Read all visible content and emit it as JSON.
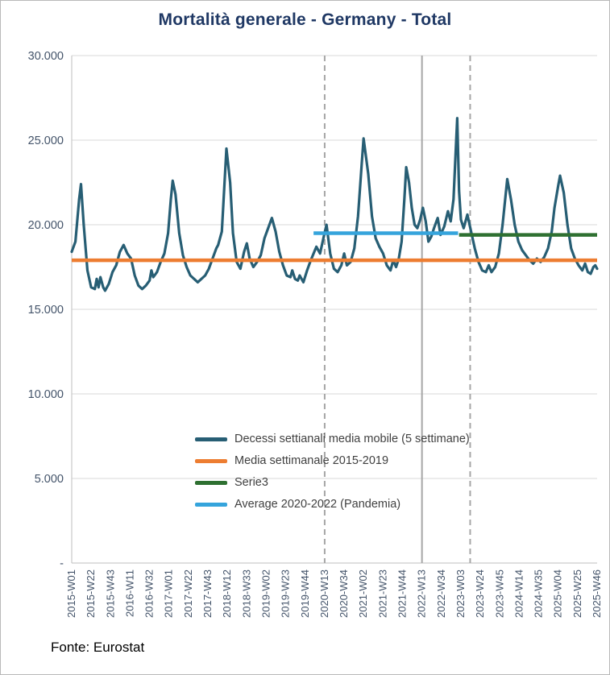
{
  "title": "Mortalità generale - Germany - Total",
  "footer": {
    "source_label": "Fonte: Eurostat"
  },
  "colors": {
    "title_text": "#1F3864",
    "axis_text": "#44546A",
    "legend_text": "#404040",
    "gridline": "#D9D9D9",
    "axis_line": "#BFBFBF",
    "vertical_marker": "#A6A6A6",
    "series_main": "#275E74",
    "series_media": "#ED7D31",
    "series_serie3": "#2E7031",
    "series_average_pandemia": "#35A4DC"
  },
  "chart_data": {
    "type": "line",
    "title": "Mortalità generale - Germany - Total",
    "source": "Fonte: Eurostat",
    "grid": "horizontal",
    "legend_position": "inside-center-left",
    "x_axis": {
      "unit": "ISO week",
      "first_week": "2015-W01",
      "last_week": "2025-W46",
      "total_weeks": 568,
      "tick_interval_weeks": 21,
      "tick_labels": [
        "2015-W01",
        "2015-W22",
        "2015-W43",
        "2016-W11",
        "2016-W32",
        "2017-W01",
        "2017-W22",
        "2017-W43",
        "2018-W12",
        "2018-W33",
        "2019-W02",
        "2019-W23",
        "2019-W44",
        "2020-W13",
        "2020-W34",
        "2021-W02",
        "2021-W23",
        "2021-W44",
        "2022-W13",
        "2022-W34",
        "2023-W03",
        "2023-W24",
        "2023-W45",
        "2024-W14",
        "2024-W35",
        "2025-W04",
        "2025-W25",
        "2025-W46"
      ]
    },
    "y_axis": {
      "min": 0,
      "max": 30000,
      "tick_step": 5000,
      "tick_labels": [
        "-",
        "5.000",
        "10.000",
        "15.000",
        "20.000",
        "25.000",
        "30.000"
      ]
    },
    "vertical_markers": [
      {
        "week": "2020-W13",
        "index": 273,
        "style": "dashed"
      },
      {
        "week": "2022-W13",
        "index": 378,
        "style": "solid"
      },
      {
        "week": "2023-W13",
        "index": 430,
        "style": "dashed"
      }
    ],
    "series": [
      {
        "key": "decessi-mm5",
        "name": "Decessi settianali media mobile (5 settimane)",
        "type": "line",
        "color": "#275E74",
        "points_week_index_value": [
          [
            0,
            18400
          ],
          [
            4,
            19000
          ],
          [
            8,
            21500
          ],
          [
            10,
            22400
          ],
          [
            13,
            20000
          ],
          [
            17,
            17300
          ],
          [
            21,
            16300
          ],
          [
            25,
            16200
          ],
          [
            27,
            16800
          ],
          [
            29,
            16300
          ],
          [
            31,
            16900
          ],
          [
            34,
            16300
          ],
          [
            36,
            16100
          ],
          [
            40,
            16500
          ],
          [
            44,
            17200
          ],
          [
            48,
            17600
          ],
          [
            52,
            18400
          ],
          [
            56,
            18800
          ],
          [
            60,
            18300
          ],
          [
            64,
            18000
          ],
          [
            68,
            17000
          ],
          [
            72,
            16400
          ],
          [
            76,
            16200
          ],
          [
            80,
            16400
          ],
          [
            84,
            16700
          ],
          [
            86,
            17300
          ],
          [
            88,
            16900
          ],
          [
            92,
            17200
          ],
          [
            96,
            17800
          ],
          [
            100,
            18300
          ],
          [
            104,
            19500
          ],
          [
            107,
            21500
          ],
          [
            109,
            22600
          ],
          [
            112,
            21800
          ],
          [
            116,
            19500
          ],
          [
            120,
            18200
          ],
          [
            124,
            17500
          ],
          [
            128,
            17000
          ],
          [
            132,
            16800
          ],
          [
            136,
            16600
          ],
          [
            140,
            16800
          ],
          [
            144,
            17000
          ],
          [
            148,
            17400
          ],
          [
            152,
            18000
          ],
          [
            156,
            18600
          ],
          [
            158,
            18800
          ],
          [
            162,
            19600
          ],
          [
            167,
            24500
          ],
          [
            171,
            22500
          ],
          [
            174,
            19500
          ],
          [
            178,
            17800
          ],
          [
            182,
            17400
          ],
          [
            186,
            18400
          ],
          [
            189,
            18900
          ],
          [
            192,
            18000
          ],
          [
            196,
            17500
          ],
          [
            200,
            17800
          ],
          [
            204,
            18200
          ],
          [
            208,
            19200
          ],
          [
            212,
            19800
          ],
          [
            216,
            20400
          ],
          [
            220,
            19600
          ],
          [
            224,
            18400
          ],
          [
            228,
            17600
          ],
          [
            232,
            17000
          ],
          [
            236,
            16900
          ],
          [
            238,
            17300
          ],
          [
            241,
            16800
          ],
          [
            244,
            16700
          ],
          [
            246,
            17000
          ],
          [
            250,
            16600
          ],
          [
            254,
            17300
          ],
          [
            258,
            17900
          ],
          [
            264,
            18700
          ],
          [
            268,
            18300
          ],
          [
            272,
            19300
          ],
          [
            275,
            20000
          ],
          [
            279,
            18300
          ],
          [
            283,
            17400
          ],
          [
            287,
            17200
          ],
          [
            291,
            17600
          ],
          [
            294,
            18300
          ],
          [
            297,
            17600
          ],
          [
            301,
            17800
          ],
          [
            305,
            18600
          ],
          [
            309,
            20500
          ],
          [
            313,
            23600
          ],
          [
            315,
            25100
          ],
          [
            320,
            23000
          ],
          [
            324,
            20500
          ],
          [
            328,
            19200
          ],
          [
            332,
            18700
          ],
          [
            336,
            18300
          ],
          [
            340,
            17600
          ],
          [
            344,
            17300
          ],
          [
            347,
            17900
          ],
          [
            350,
            17500
          ],
          [
            353,
            18000
          ],
          [
            356,
            19000
          ],
          [
            359,
            21500
          ],
          [
            361,
            23400
          ],
          [
            364,
            22500
          ],
          [
            367,
            21000
          ],
          [
            370,
            20000
          ],
          [
            373,
            19800
          ],
          [
            376,
            20300
          ],
          [
            379,
            21000
          ],
          [
            382,
            20200
          ],
          [
            385,
            19000
          ],
          [
            388,
            19300
          ],
          [
            391,
            19800
          ],
          [
            395,
            20400
          ],
          [
            398,
            19400
          ],
          [
            402,
            19900
          ],
          [
            406,
            20800
          ],
          [
            409,
            20200
          ],
          [
            412,
            21500
          ],
          [
            416,
            26300
          ],
          [
            418,
            22000
          ],
          [
            420,
            20300
          ],
          [
            423,
            19800
          ],
          [
            427,
            20600
          ],
          [
            431,
            19600
          ],
          [
            435,
            18600
          ],
          [
            439,
            17800
          ],
          [
            443,
            17300
          ],
          [
            447,
            17200
          ],
          [
            450,
            17600
          ],
          [
            453,
            17200
          ],
          [
            457,
            17500
          ],
          [
            461,
            18300
          ],
          [
            465,
            20000
          ],
          [
            470,
            22700
          ],
          [
            474,
            21500
          ],
          [
            478,
            20000
          ],
          [
            482,
            19000
          ],
          [
            486,
            18500
          ],
          [
            490,
            18200
          ],
          [
            494,
            17900
          ],
          [
            498,
            17700
          ],
          [
            502,
            18000
          ],
          [
            506,
            17800
          ],
          [
            510,
            18100
          ],
          [
            514,
            18600
          ],
          [
            518,
            19600
          ],
          [
            521,
            21000
          ],
          [
            525,
            22300
          ],
          [
            527,
            22900
          ],
          [
            531,
            21900
          ],
          [
            535,
            20000
          ],
          [
            539,
            18600
          ],
          [
            543,
            18000
          ],
          [
            547,
            17600
          ],
          [
            551,
            17300
          ],
          [
            554,
            17700
          ],
          [
            557,
            17200
          ],
          [
            560,
            17100
          ],
          [
            563,
            17500
          ],
          [
            565,
            17600
          ],
          [
            567,
            17400
          ]
        ]
      },
      {
        "key": "media-2015-2019",
        "name": "Media settimanale 2015-2019",
        "type": "constant-line",
        "color": "#ED7D31",
        "value": 17900,
        "from_week": "2015-W01",
        "to_week": "2025-W46",
        "from_index": 0,
        "to_index": 567
      },
      {
        "key": "serie3",
        "name": "Serie3",
        "type": "constant-line",
        "color": "#2E7031",
        "value": 19400,
        "from_week": "2023-W01",
        "to_week": "2025-W46",
        "from_index": 418,
        "to_index": 567
      },
      {
        "key": "average-2020-2022-pandemia",
        "name": "Average 2020-2022 (Pandemia)",
        "type": "constant-line",
        "color": "#35A4DC",
        "value": 19500,
        "from_week": "2020-W01",
        "to_week": "2022-W52",
        "from_index": 261,
        "to_index": 417
      }
    ],
    "legend_entries": [
      "Decessi settianali media mobile (5 settimane)",
      "Media settimanale 2015-2019",
      "Serie3",
      "Average 2020-2022 (Pandemia)"
    ]
  }
}
